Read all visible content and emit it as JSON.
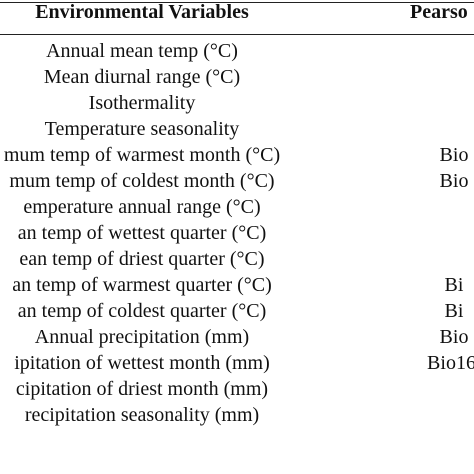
{
  "table": {
    "headers": {
      "variables": "Environmental Variables",
      "pearson": "Pearso"
    },
    "rows": [
      {
        "variable": "Annual mean temp (°C)",
        "pearson": ""
      },
      {
        "variable": "Mean diurnal range (°C)",
        "pearson": ""
      },
      {
        "variable": "Isothermality",
        "pearson": ""
      },
      {
        "variable": "Temperature seasonality",
        "pearson": ""
      },
      {
        "variable": "mum temp of warmest month (°C)",
        "pearson": "Bio"
      },
      {
        "variable": "mum temp of coldest month (°C)",
        "pearson": "Bio"
      },
      {
        "variable": "emperature annual range (°C)",
        "pearson": ""
      },
      {
        "variable": "an temp of wettest quarter (°C)",
        "pearson": ""
      },
      {
        "variable": "ean temp of driest quarter (°C)",
        "pearson": ""
      },
      {
        "variable": "an temp of warmest quarter (°C)",
        "pearson": "Bi"
      },
      {
        "variable": "an temp of coldest quarter (°C)",
        "pearson": "Bi"
      },
      {
        "variable": "Annual precipitation (mm)",
        "pearson": "Bio"
      },
      {
        "variable": "ipitation of wettest month (mm)",
        "pearson": "Bio16,"
      },
      {
        "variable": "cipitation of driest month (mm)",
        "pearson": ""
      },
      {
        "variable": "recipitation seasonality (mm)",
        "pearson": ""
      }
    ]
  }
}
